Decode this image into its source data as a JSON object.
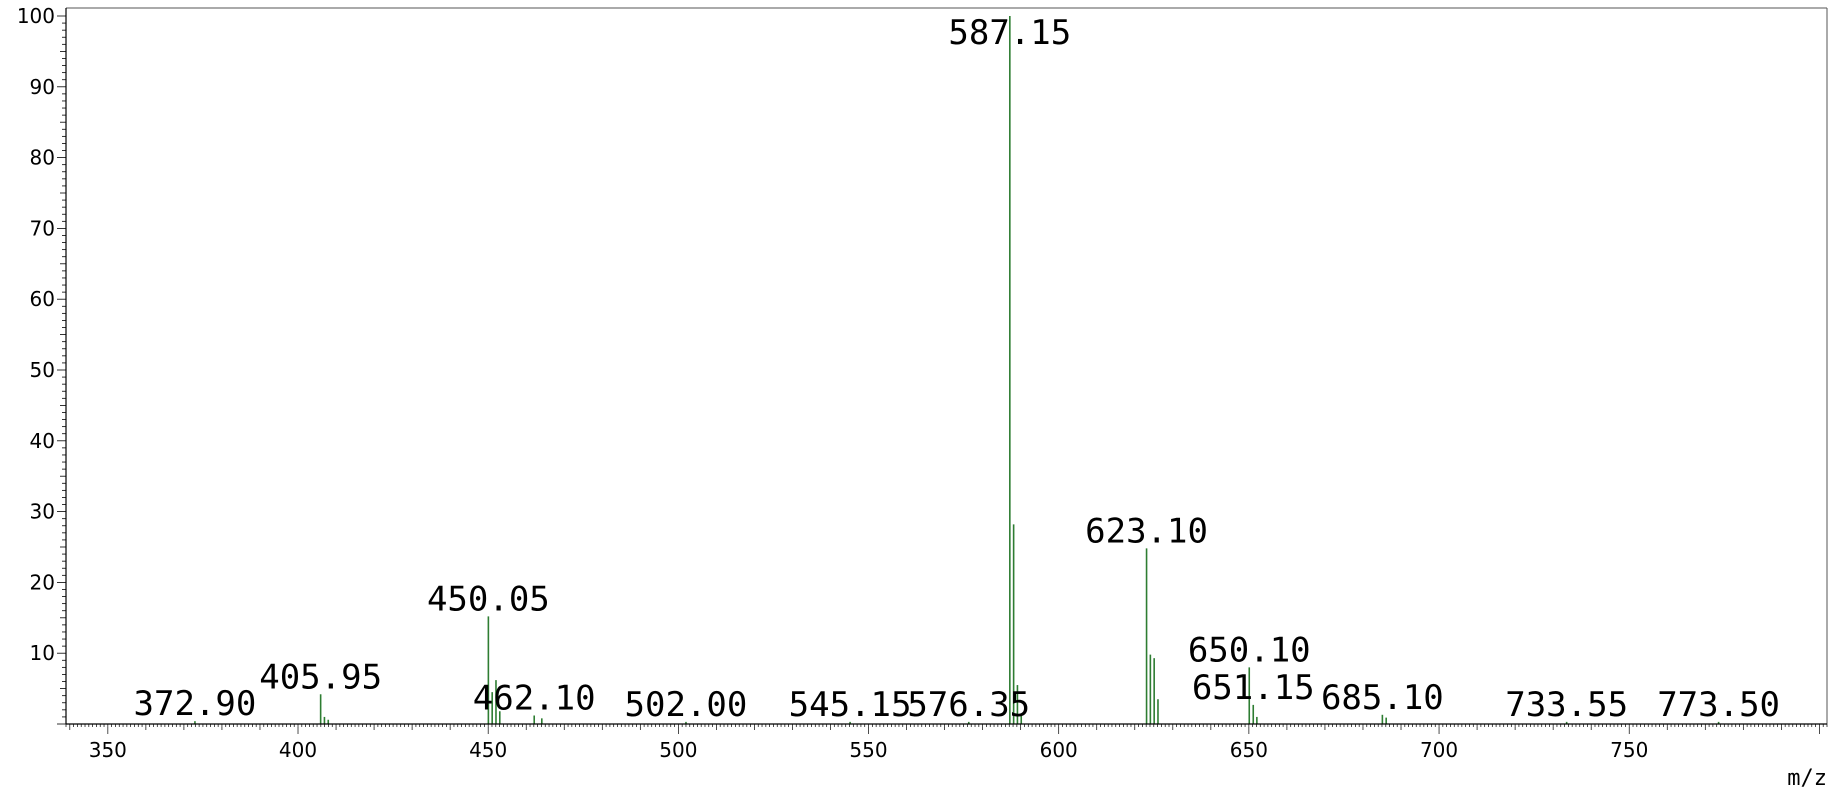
{
  "chart_data": {
    "type": "bar",
    "title": "",
    "xlabel": "m/z",
    "ylabel": "",
    "xlim": [
      339,
      802
    ],
    "ylim": [
      0,
      100
    ],
    "x_ticks": [
      350,
      400,
      450,
      500,
      550,
      600,
      650,
      700,
      750
    ],
    "y_ticks": [
      10,
      20,
      30,
      40,
      50,
      60,
      70,
      80,
      90,
      100
    ],
    "grid": false,
    "bar_color": "#2e7d32",
    "peaks": [
      {
        "x": 372.9,
        "y": 0.4
      },
      {
        "x": 405.95,
        "y": 4.2
      },
      {
        "x": 406.95,
        "y": 1.0
      },
      {
        "x": 407.95,
        "y": 0.6
      },
      {
        "x": 450.05,
        "y": 15.2
      },
      {
        "x": 451.05,
        "y": 4.5
      },
      {
        "x": 452.05,
        "y": 6.2
      },
      {
        "x": 453.05,
        "y": 1.8
      },
      {
        "x": 462.1,
        "y": 1.2
      },
      {
        "x": 464.1,
        "y": 0.8
      },
      {
        "x": 502.0,
        "y": 0.3
      },
      {
        "x": 545.15,
        "y": 0.3
      },
      {
        "x": 576.35,
        "y": 0.3
      },
      {
        "x": 587.15,
        "y": 100
      },
      {
        "x": 588.15,
        "y": 28.2
      },
      {
        "x": 589.15,
        "y": 5.5
      },
      {
        "x": 590.15,
        "y": 1.2
      },
      {
        "x": 623.1,
        "y": 24.8
      },
      {
        "x": 624.1,
        "y": 9.8
      },
      {
        "x": 625.1,
        "y": 9.3
      },
      {
        "x": 626.1,
        "y": 3.5
      },
      {
        "x": 650.1,
        "y": 8.0
      },
      {
        "x": 651.15,
        "y": 2.7
      },
      {
        "x": 652.1,
        "y": 1.0
      },
      {
        "x": 685.1,
        "y": 1.3
      },
      {
        "x": 686.1,
        "y": 0.9
      },
      {
        "x": 733.55,
        "y": 0.3
      },
      {
        "x": 773.5,
        "y": 0.3
      }
    ],
    "peak_labels": [
      {
        "text": "372.90",
        "x": 372.9,
        "y": 0.4
      },
      {
        "text": "405.95",
        "x": 405.95,
        "y": 4.2
      },
      {
        "text": "450.05",
        "x": 450.05,
        "y": 15.2
      },
      {
        "text": "462.10",
        "x": 462.1,
        "y": 1.2
      },
      {
        "text": "502.00",
        "x": 502.0,
        "y": 0.3
      },
      {
        "text": "545.15",
        "x": 545.15,
        "y": 0.3
      },
      {
        "text": "576.35",
        "x": 576.35,
        "y": 0.3
      },
      {
        "text": "587.15",
        "x": 587.15,
        "y": 100
      },
      {
        "text": "623.10",
        "x": 623.1,
        "y": 24.8
      },
      {
        "text": "650.10",
        "x": 650.1,
        "y": 8.0
      },
      {
        "text": "651.15",
        "x": 651.15,
        "y": 2.7
      },
      {
        "text": "685.10",
        "x": 685.1,
        "y": 1.3
      },
      {
        "text": "733.55",
        "x": 733.55,
        "y": 0.3
      },
      {
        "text": "773.50",
        "x": 773.5,
        "y": 0.3
      }
    ]
  }
}
